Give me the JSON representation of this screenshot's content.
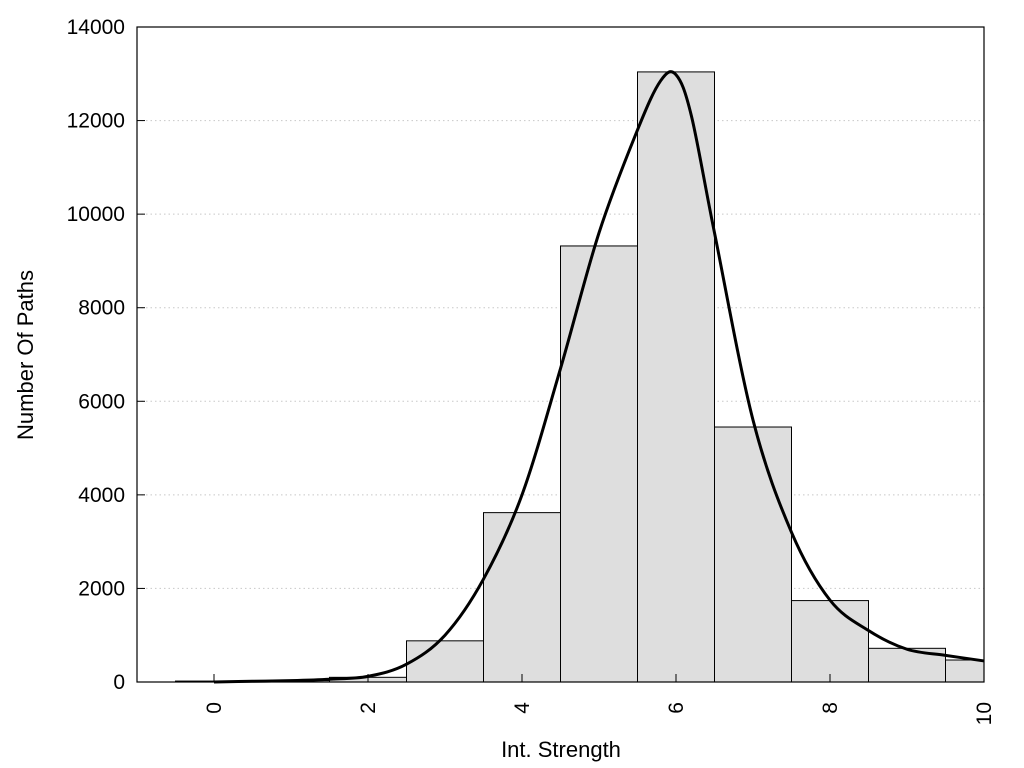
{
  "chart_data": {
    "type": "bar",
    "title": "",
    "xlabel": "Int. Strength",
    "ylabel": "Number Of Paths",
    "xlim": [
      -1,
      10
    ],
    "ylim": [
      0,
      14000
    ],
    "x_ticks": [
      0,
      2,
      4,
      6,
      8,
      10
    ],
    "y_ticks": [
      0,
      2000,
      4000,
      6000,
      8000,
      10000,
      12000,
      14000
    ],
    "grid": "horizontal-dotted",
    "legend": "none",
    "bar_color": "#dedede",
    "curve_color": "#000000",
    "series": [
      {
        "kind": "histogram",
        "bin_width": 1,
        "bin_centers": [
          0,
          1,
          2,
          3,
          4,
          5,
          6,
          7,
          8,
          9,
          10
        ],
        "values": [
          20,
          30,
          100,
          880,
          3620,
          9320,
          13040,
          5450,
          1740,
          720,
          470
        ]
      },
      {
        "kind": "density-curve",
        "x": [
          0,
          0.5,
          1,
          1.5,
          2,
          2.5,
          3,
          3.5,
          4,
          4.5,
          5,
          5.5,
          5.8,
          6,
          6.2,
          6.5,
          7,
          7.5,
          8,
          8.5,
          9,
          9.5,
          10
        ],
        "y": [
          0,
          15,
          30,
          60,
          120,
          380,
          1000,
          2200,
          4000,
          6700,
          9600,
          11800,
          12850,
          12980,
          12100,
          9600,
          5600,
          3200,
          1750,
          1100,
          700,
          570,
          450
        ]
      }
    ]
  }
}
